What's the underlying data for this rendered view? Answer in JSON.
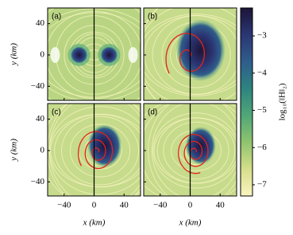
{
  "chart_data": {
    "type": "heatmap",
    "panels": [
      {
        "label": "(a)"
      },
      {
        "label": "(b)"
      },
      {
        "label": "(c)"
      },
      {
        "label": "(d)"
      }
    ],
    "xlabel": "x (km)",
    "ylabel": "y (km)",
    "xlim": [
      -62,
      62
    ],
    "xticks": [
      {
        "value": -40,
        "label": "−40"
      },
      0,
      40
    ],
    "ylim": [
      -58,
      60
    ],
    "yticks": [
      {
        "value": -40,
        "label": "−40"
      },
      0,
      40
    ],
    "colorbar": {
      "label": "log₁₀(‖H‖₂)",
      "lim": [
        -7.3,
        -2.25
      ],
      "ticks": [
        {
          "value": -3,
          "label": "−3"
        },
        {
          "value": -4,
          "label": "−4"
        },
        {
          "value": -5,
          "label": "−5"
        },
        {
          "value": -6,
          "label": "−6"
        },
        {
          "value": -7,
          "label": "−7"
        }
      ],
      "colors": [
        "#fbf5c0",
        "#d6de8a",
        "#8fc46e",
        "#4fa778",
        "#2d8480",
        "#2f5d8c",
        "#2b3674",
        "#1c1538"
      ]
    }
  }
}
